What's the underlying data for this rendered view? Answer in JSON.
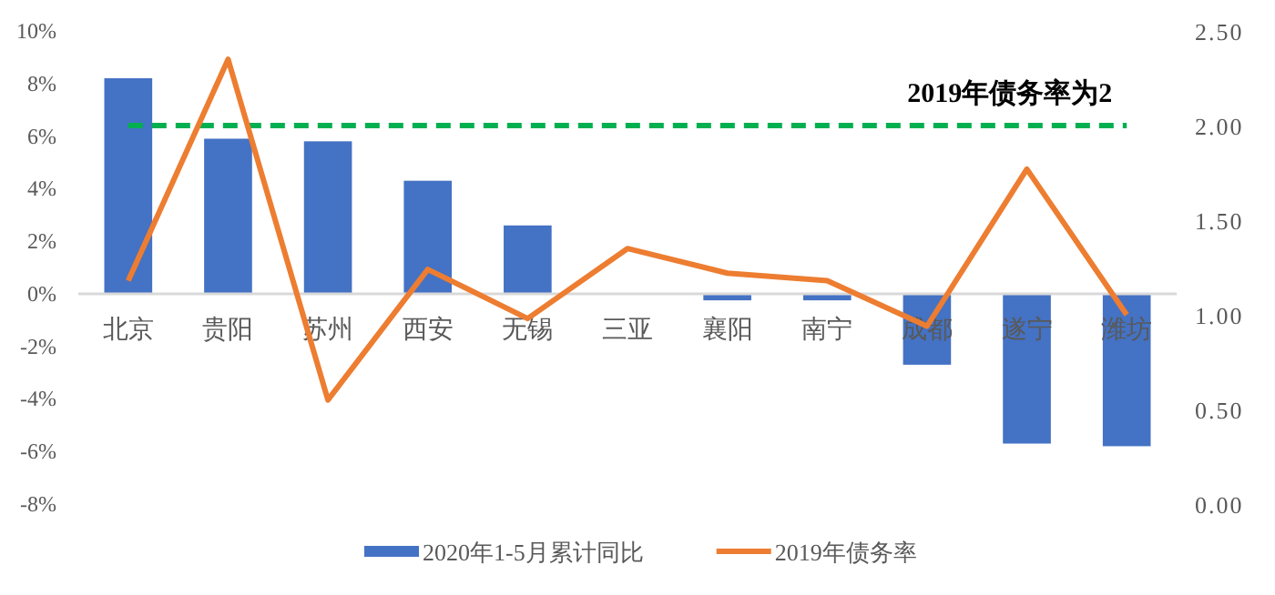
{
  "chart_data": {
    "type": "bar",
    "categories": [
      "北京",
      "贵阳",
      "苏州",
      "西安",
      "无锡",
      "三亚",
      "襄阳",
      "南宁",
      "成都",
      "遂宁",
      "潍坊"
    ],
    "series": [
      {
        "name": "2020年1-5月累计同比",
        "color": "#4472c4",
        "values": [
          8.2,
          5.9,
          5.8,
          4.3,
          2.6,
          0,
          -0.25,
          -0.25,
          -2.7,
          -5.7,
          -5.8
        ]
      },
      {
        "name": "2019年债务率",
        "type": "line",
        "axis": "y2",
        "color": "#ed7d31",
        "values": [
          1.18,
          2.35,
          0.55,
          1.24,
          0.98,
          1.35,
          1.22,
          1.18,
          0.94,
          1.77,
          1.0
        ]
      }
    ],
    "ylim": [
      -8,
      10
    ],
    "yticks": [
      {
        "value": -8,
        "label": "-8%"
      },
      {
        "value": -6,
        "label": "-6%"
      },
      {
        "value": -4,
        "label": "-4%"
      },
      {
        "value": -2,
        "label": "-2%"
      },
      {
        "value": 0,
        "label": "0%"
      },
      {
        "value": 2,
        "label": "2%"
      },
      {
        "value": 4,
        "label": "4%"
      },
      {
        "value": 6,
        "label": "6%"
      },
      {
        "value": 8,
        "label": "8%"
      },
      {
        "value": 10,
        "label": "10%"
      }
    ],
    "y2lim": [
      0,
      2.5
    ],
    "y2ticks": [
      {
        "value": 0,
        "label": "0.00"
      },
      {
        "value": 0.5,
        "label": "0.50"
      },
      {
        "value": 1,
        "label": "1.00"
      },
      {
        "value": 1.5,
        "label": "1.50"
      },
      {
        "value": 2,
        "label": "2.00"
      },
      {
        "value": 2.5,
        "label": "2.50"
      }
    ],
    "ref_lines": [
      {
        "axis": "y2",
        "value": 2,
        "label": "2019年债务率为2",
        "color": "#00b050",
        "line_style": "dashed"
      }
    ],
    "legend": "bottom",
    "grid": false
  }
}
